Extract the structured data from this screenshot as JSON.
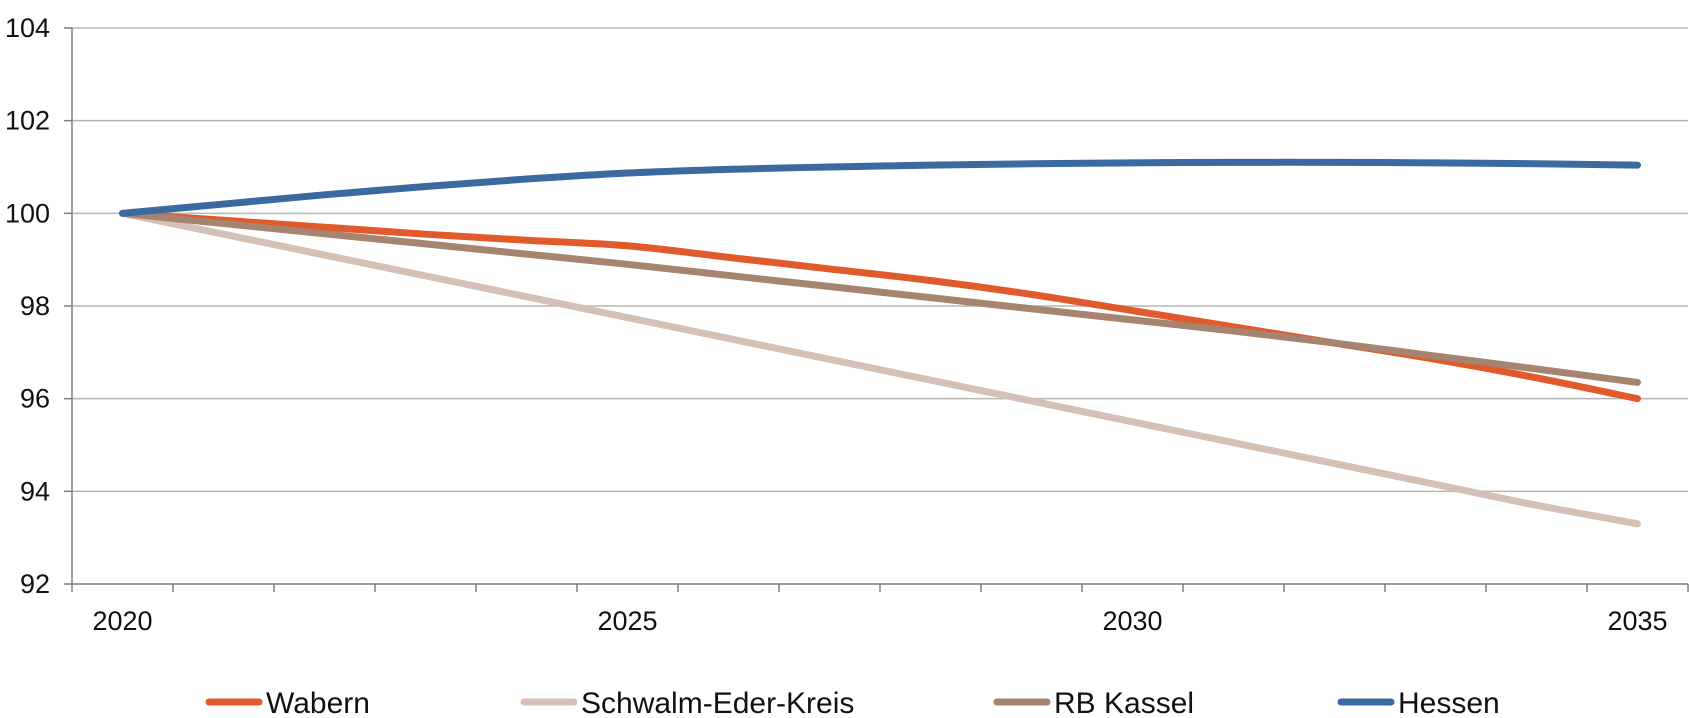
{
  "chart_data": {
    "type": "line",
    "title": "",
    "xlabel": "",
    "ylabel": "",
    "x": [
      2020,
      2021,
      2022,
      2023,
      2024,
      2025,
      2026,
      2027,
      2028,
      2029,
      2030,
      2031,
      2032,
      2033,
      2034,
      2035
    ],
    "xlim": [
      2019.5,
      2035.5
    ],
    "ylim": [
      92,
      104
    ],
    "x_ticks": [
      2020,
      2025,
      2030,
      2035
    ],
    "y_ticks": [
      92,
      94,
      96,
      98,
      100,
      102,
      104
    ],
    "grid": "horizontal",
    "legend_position": "bottom",
    "series": [
      {
        "name": "Wabern",
        "color": "#e05a2b",
        "values": [
          100.0,
          99.85,
          99.7,
          99.55,
          99.42,
          99.3,
          99.05,
          98.8,
          98.55,
          98.25,
          97.9,
          97.55,
          97.2,
          96.85,
          96.45,
          96.0
        ]
      },
      {
        "name": "Schwalm-Eder-Kreis",
        "color": "#d4c0b4",
        "values": [
          100.0,
          99.55,
          99.1,
          98.65,
          98.2,
          97.75,
          97.3,
          96.85,
          96.4,
          95.95,
          95.5,
          95.05,
          94.6,
          94.15,
          93.7,
          93.3
        ]
      },
      {
        "name": "RB Kassel",
        "color": "#a68470",
        "values": [
          100.0,
          99.78,
          99.56,
          99.34,
          99.12,
          98.9,
          98.66,
          98.42,
          98.18,
          97.94,
          97.7,
          97.46,
          97.2,
          96.92,
          96.64,
          96.35
        ]
      },
      {
        "name": "Hessen",
        "color": "#3b6aa0",
        "values": [
          100.0,
          100.2,
          100.4,
          100.58,
          100.74,
          100.87,
          100.95,
          101.0,
          101.04,
          101.07,
          101.09,
          101.1,
          101.1,
          101.09,
          101.07,
          101.04
        ]
      }
    ]
  }
}
